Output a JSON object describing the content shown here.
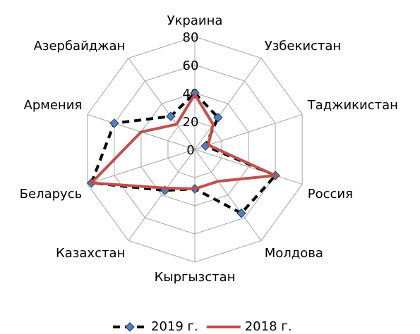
{
  "chart_data": {
    "type": "radar",
    "categories": [
      "Украина",
      "Узбекистан",
      "Таджикистан",
      "Россия",
      "Молдова",
      "Кыргызстан",
      "Казахстан",
      "Беларусь",
      "Армения",
      "Азербайджан"
    ],
    "series": [
      {
        "name": "2019 г.",
        "color": "#000000",
        "values": [
          40,
          28,
          8,
          60,
          56,
          28,
          36,
          77,
          60,
          29
        ]
      },
      {
        "name": "2018 г.",
        "color": "#c0504d",
        "values": [
          39,
          22,
          10,
          60,
          28,
          28,
          34,
          77,
          40,
          22
        ]
      }
    ],
    "ylim": [
      0,
      80
    ],
    "yticks": [
      0,
      20,
      40,
      60,
      80
    ],
    "grid": true,
    "legend": "bottom"
  }
}
